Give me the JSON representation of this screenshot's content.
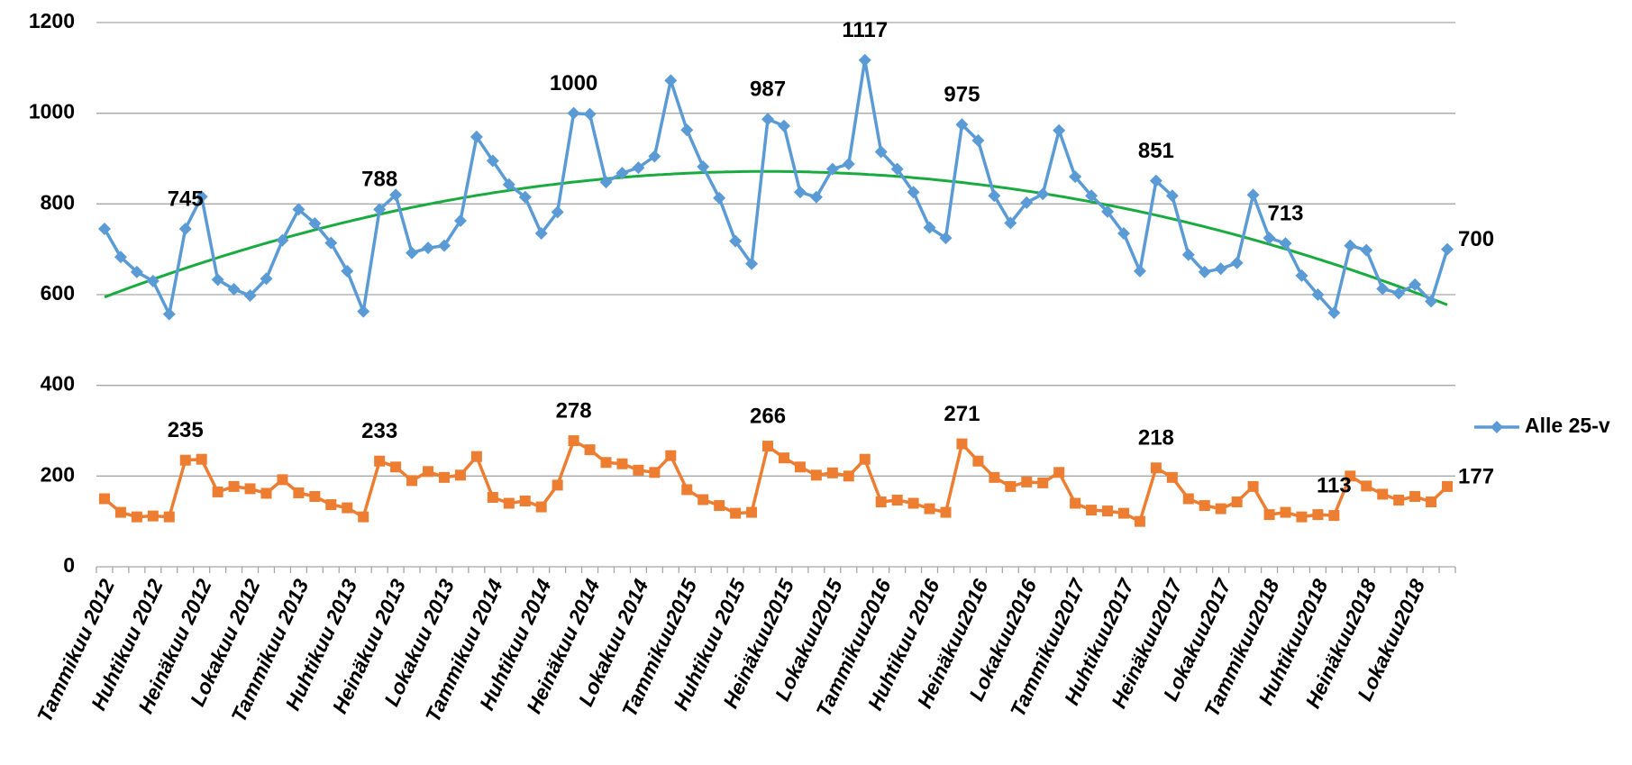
{
  "chart_data": {
    "type": "line",
    "categories": [
      "Tammikuu 2012",
      null,
      null,
      "Huhtikuu 2012",
      null,
      null,
      "Heinäkuu 2012",
      null,
      null,
      "Lokakuu 2012",
      null,
      null,
      "Tammikuu 2013",
      null,
      null,
      "Huhtikuu 2013",
      null,
      null,
      "Heinäkuu 2013",
      null,
      null,
      "Lokakuu 2013",
      null,
      null,
      "Tammikuu 2014",
      null,
      null,
      "Huhtikuu 2014",
      null,
      null,
      "Heinäkuu 2014",
      null,
      null,
      "Lokakuu 2014",
      null,
      null,
      "Tammikuu2015",
      null,
      null,
      "Huhtikuu 2015",
      null,
      null,
      "Heinäkuu2015",
      null,
      null,
      "Lokakuu2015",
      null,
      null,
      "Tammikuu2016",
      null,
      null,
      "Huhtikuu 2016",
      null,
      null,
      "Heinäkuu2016",
      null,
      null,
      "Lokakuu2016",
      null,
      null,
      "Tammikuu2017",
      null,
      null,
      "Huhtikuu2017",
      null,
      null,
      "Heinäkuu2017",
      null,
      null,
      "Lokakuu2017",
      null,
      null,
      "Tammikuu2018",
      null,
      null,
      "Huhtikuu2018",
      null,
      null,
      "Heinäkuu2018",
      null,
      null,
      "Lokakuu2018",
      null,
      null
    ],
    "series": [
      {
        "name": "Alle 25-v",
        "color": "#5b9bd5",
        "marker": "diamond",
        "values": [
          745,
          683,
          650,
          630,
          557,
          745,
          816,
          633,
          612,
          598,
          635,
          720,
          788,
          757,
          714,
          652,
          563,
          788,
          820,
          692,
          703,
          708,
          763,
          948,
          895,
          843,
          815,
          735,
          782,
          1000,
          998,
          848,
          868,
          880,
          905,
          1072,
          963,
          882,
          813,
          718,
          668,
          987,
          972,
          826,
          815,
          877,
          888,
          1117,
          915,
          877,
          826,
          748,
          725,
          975,
          940,
          818,
          758,
          803,
          822,
          962,
          860,
          818,
          783,
          735,
          652,
          851,
          818,
          688,
          650,
          657,
          670,
          820,
          725,
          713,
          642,
          600,
          560,
          708,
          698,
          613,
          603,
          622,
          585,
          700
        ],
        "labeled_indices": [
          5,
          17,
          29,
          41,
          47,
          53,
          65,
          73,
          83
        ],
        "trendline": {
          "type": "polynomial",
          "order": 2,
          "color": "#1aab40"
        }
      },
      {
        "color": "#ed7d31",
        "marker": "square",
        "values": [
          150,
          120,
          110,
          112,
          110,
          235,
          237,
          165,
          177,
          172,
          162,
          192,
          163,
          155,
          137,
          130,
          110,
          233,
          220,
          190,
          210,
          197,
          202,
          243,
          153,
          140,
          145,
          132,
          180,
          278,
          258,
          230,
          227,
          213,
          208,
          245,
          170,
          148,
          135,
          118,
          120,
          266,
          240,
          220,
          202,
          207,
          200,
          237,
          143,
          147,
          140,
          128,
          120,
          271,
          233,
          197,
          177,
          187,
          185,
          208,
          140,
          125,
          123,
          118,
          100,
          218,
          197,
          150,
          135,
          128,
          143,
          177,
          115,
          120,
          110,
          115,
          113,
          200,
          178,
          160,
          147,
          155,
          143,
          177
        ],
        "labeled_indices": [
          5,
          17,
          29,
          41,
          53,
          65,
          76,
          83
        ]
      }
    ],
    "ylim": [
      0,
      1200
    ],
    "yticks": [
      0,
      200,
      400,
      600,
      800,
      1000,
      1200
    ],
    "grid": true,
    "legend": "right"
  }
}
